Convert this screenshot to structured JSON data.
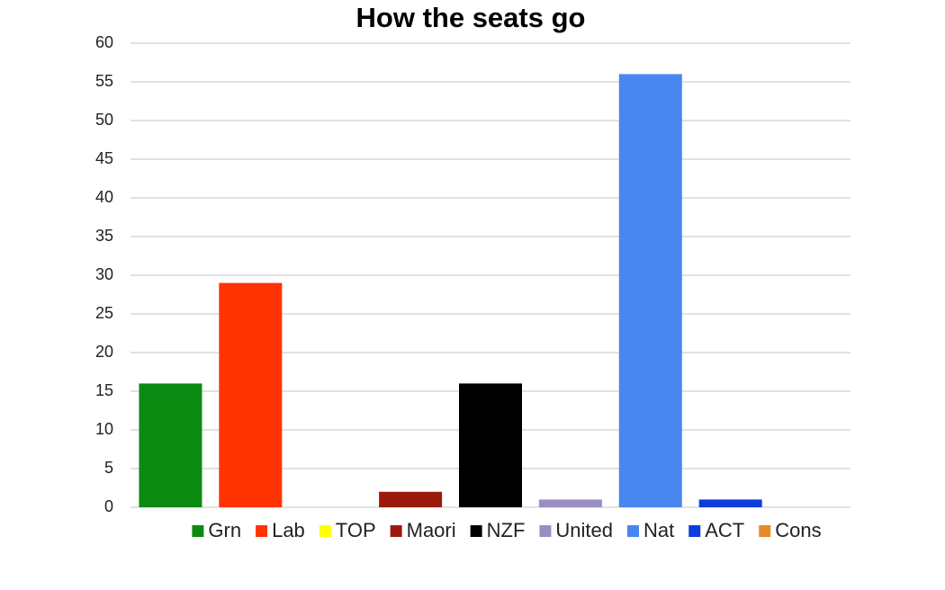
{
  "chart_data": {
    "type": "bar",
    "title": "How the seats go",
    "categories": [
      "Grn",
      "Lab",
      "TOP",
      "Maori",
      "NZF",
      "United",
      "Nat",
      "ACT",
      "Cons"
    ],
    "values": [
      16,
      29,
      0,
      2,
      16,
      1,
      56,
      1,
      0
    ],
    "colors": [
      "#0b8a12",
      "#ff3300",
      "#ffff00",
      "#9b1a0c",
      "#000000",
      "#9b8ec3",
      "#4a86f0",
      "#0d3ddc",
      "#e8892b"
    ],
    "ylim": [
      0,
      60
    ],
    "yticks": [
      0,
      5,
      10,
      15,
      20,
      25,
      30,
      35,
      40,
      45,
      50,
      55,
      60
    ],
    "grid": true
  }
}
